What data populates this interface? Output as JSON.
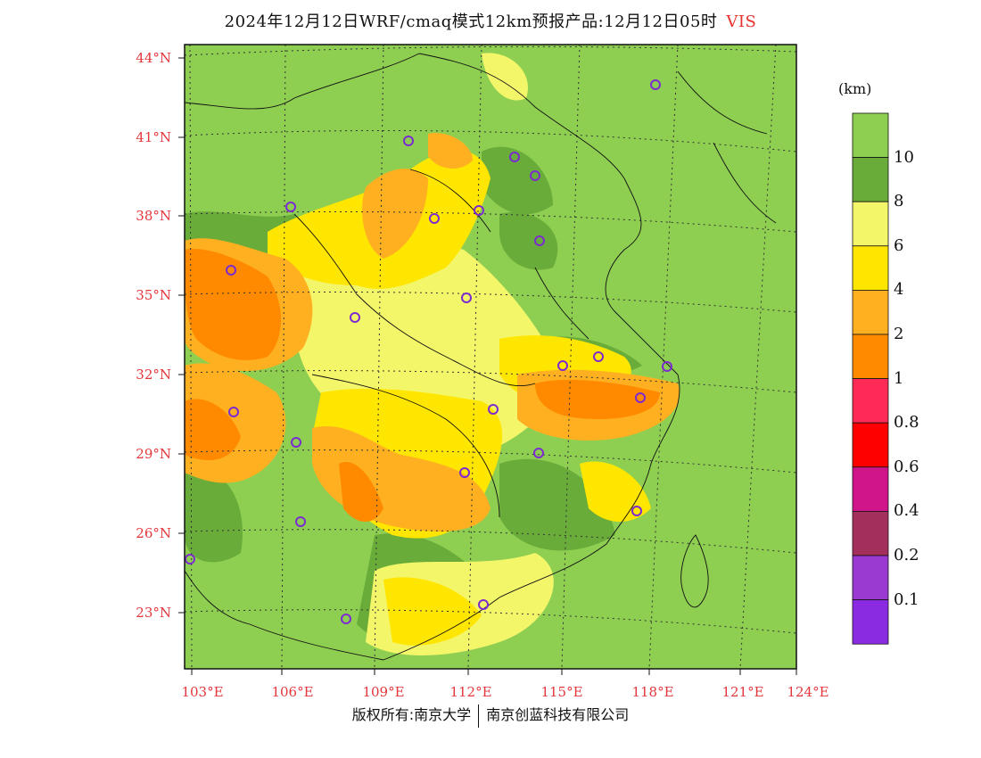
{
  "title": {
    "main": "2024年12月12日WRF/cmaq模式12km预报产品:12月12日05时",
    "variable": "VIS"
  },
  "map": {
    "lon_ticks": [
      "103°E",
      "106°E",
      "109°E",
      "112°E",
      "115°E",
      "118°E",
      "121°E",
      "124°E"
    ],
    "lat_ticks": [
      "44°N",
      "41°N",
      "38°N",
      "35°N",
      "32°N",
      "29°N",
      "26°N",
      "23°N"
    ],
    "land_color": "#8ecf52",
    "sea_color": "#8ecf52"
  },
  "colorbar": {
    "unit": "(km)",
    "colors": [
      "#8ecf52",
      "#6aac3a",
      "#f4f66a",
      "#ffe600",
      "#ffb020",
      "#ff8a00",
      "#ff2a55",
      "#ff0000",
      "#d0158a",
      "#a3305c",
      "#9b3ad0",
      "#8a2be2"
    ],
    "labels": [
      "10",
      "8",
      "6",
      "4",
      "2",
      "1",
      "0.8",
      "0.6",
      "0.4",
      "0.2",
      "0.1"
    ]
  },
  "footer": {
    "left": "版权所有:南京大学",
    "right": "南京创蓝科技有限公司"
  }
}
